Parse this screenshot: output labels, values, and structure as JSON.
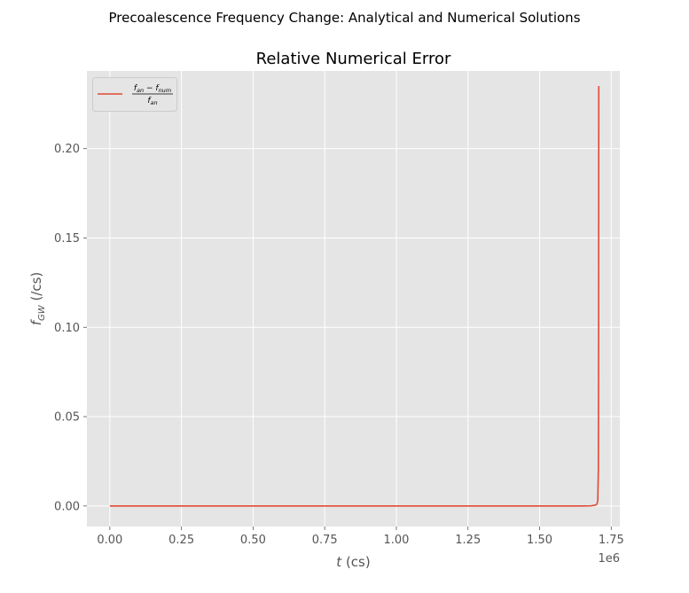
{
  "figure": {
    "suptitle": "Precoalescence Frequency Change: Analytical and Numerical Solutions"
  },
  "chart_data": {
    "type": "line",
    "title": "Relative Numerical Error",
    "xlabel": "t (cs)",
    "ylabel": "f_GW (/cs)",
    "x_offset_label": "1e6",
    "xlim": [
      -0.08,
      1.78
    ],
    "ylim": [
      -0.0115,
      0.2435
    ],
    "x_scale_factor": 1000000,
    "x_ticks": [
      0.0,
      0.25,
      0.5,
      0.75,
      1.0,
      1.25,
      1.5,
      1.75
    ],
    "x_tick_labels": [
      "0.00",
      "0.25",
      "0.50",
      "0.75",
      "1.00",
      "1.25",
      "1.50",
      "1.75"
    ],
    "y_ticks": [
      0.0,
      0.05,
      0.1,
      0.15,
      0.2
    ],
    "y_tick_labels": [
      "0.00",
      "0.05",
      "0.10",
      "0.15",
      "0.20"
    ],
    "grid": true,
    "legend_position": "top-left",
    "colors": {
      "series": "#E24A33",
      "axes_bg": "#E5E5E5",
      "grid": "#FFFFFF",
      "tick_text": "#555555"
    },
    "series": [
      {
        "name": "(f_an - f_num) / f_an",
        "x": [
          0.0,
          0.25,
          0.5,
          0.75,
          1.0,
          1.25,
          1.5,
          1.6,
          1.65,
          1.68,
          1.695,
          1.7,
          1.703,
          1.705,
          1.706,
          1.7065
        ],
        "y": [
          0.0,
          0.0,
          0.0,
          0.0,
          0.0,
          0.0,
          0.0,
          0.0,
          0.0,
          0.0001,
          0.0005,
          0.001,
          0.003,
          0.02,
          0.1,
          0.235
        ]
      }
    ]
  }
}
